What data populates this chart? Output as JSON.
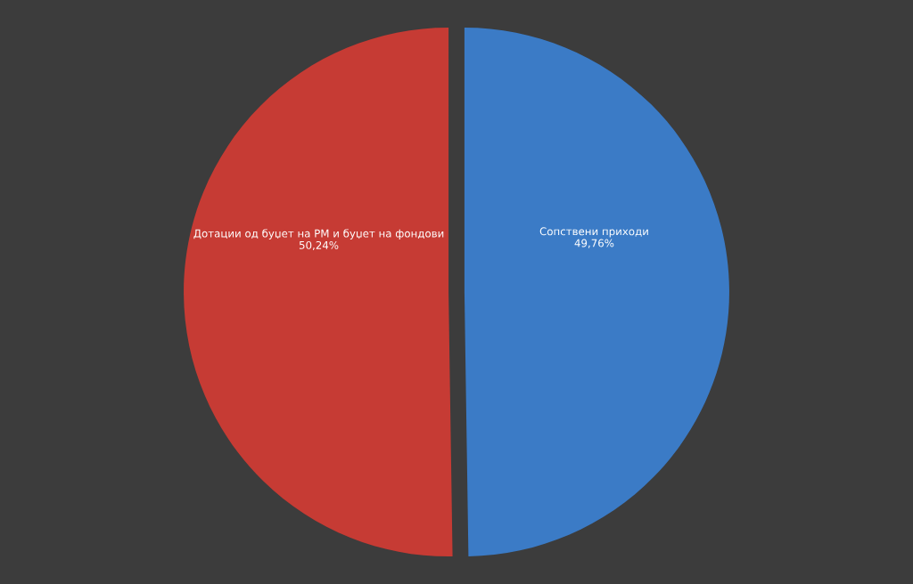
{
  "chart_data": {
    "type": "pie",
    "categories": [
      "Сопствени приходи",
      "Дотации од буџет на РМ и буџет на фондови"
    ],
    "values": [
      49.76,
      50.24
    ],
    "value_labels": [
      "49,76%",
      "50,24%"
    ],
    "colors": [
      "#3b7bc6",
      "#c63b34"
    ],
    "legend": false
  }
}
